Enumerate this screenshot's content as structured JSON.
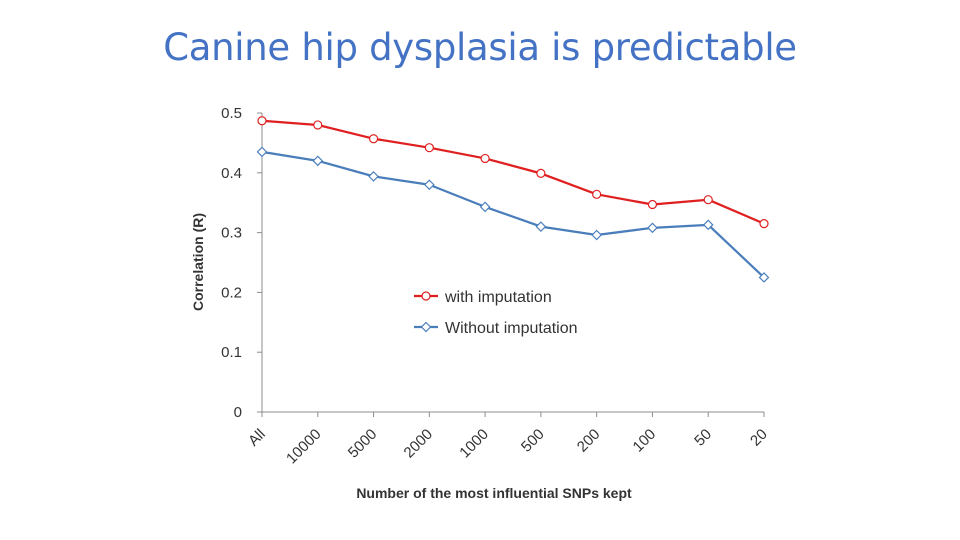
{
  "slide": {
    "title": "Canine hip dysplasia is predictable",
    "title_color": "#4472c4"
  },
  "chart_data": {
    "type": "line",
    "title": "",
    "xlabel": "Number of the most influential SNPs kept",
    "ylabel": "Correlation (R)",
    "categories": [
      "All",
      "10000",
      "5000",
      "2000",
      "1000",
      "500",
      "200",
      "100",
      "50",
      "20"
    ],
    "ylim": [
      0,
      0.5
    ],
    "yticks": [
      "0",
      "0.1",
      "0.2",
      "0.3",
      "0.4",
      "0.5"
    ],
    "ytick_values": [
      0,
      0.1,
      0.2,
      0.3,
      0.4,
      0.5
    ],
    "grid": false,
    "legend_position": "center-right",
    "series": [
      {
        "name": "with imputation",
        "color": "#e02020",
        "marker": "circle",
        "values": [
          0.487,
          0.48,
          0.457,
          0.442,
          0.424,
          0.399,
          0.364,
          0.347,
          0.355,
          0.315
        ]
      },
      {
        "name": "Without imputation",
        "color": "#4a7ebb",
        "marker": "diamond",
        "values": [
          0.435,
          0.42,
          0.394,
          0.38,
          0.343,
          0.31,
          0.296,
          0.308,
          0.313,
          0.225
        ]
      }
    ]
  }
}
